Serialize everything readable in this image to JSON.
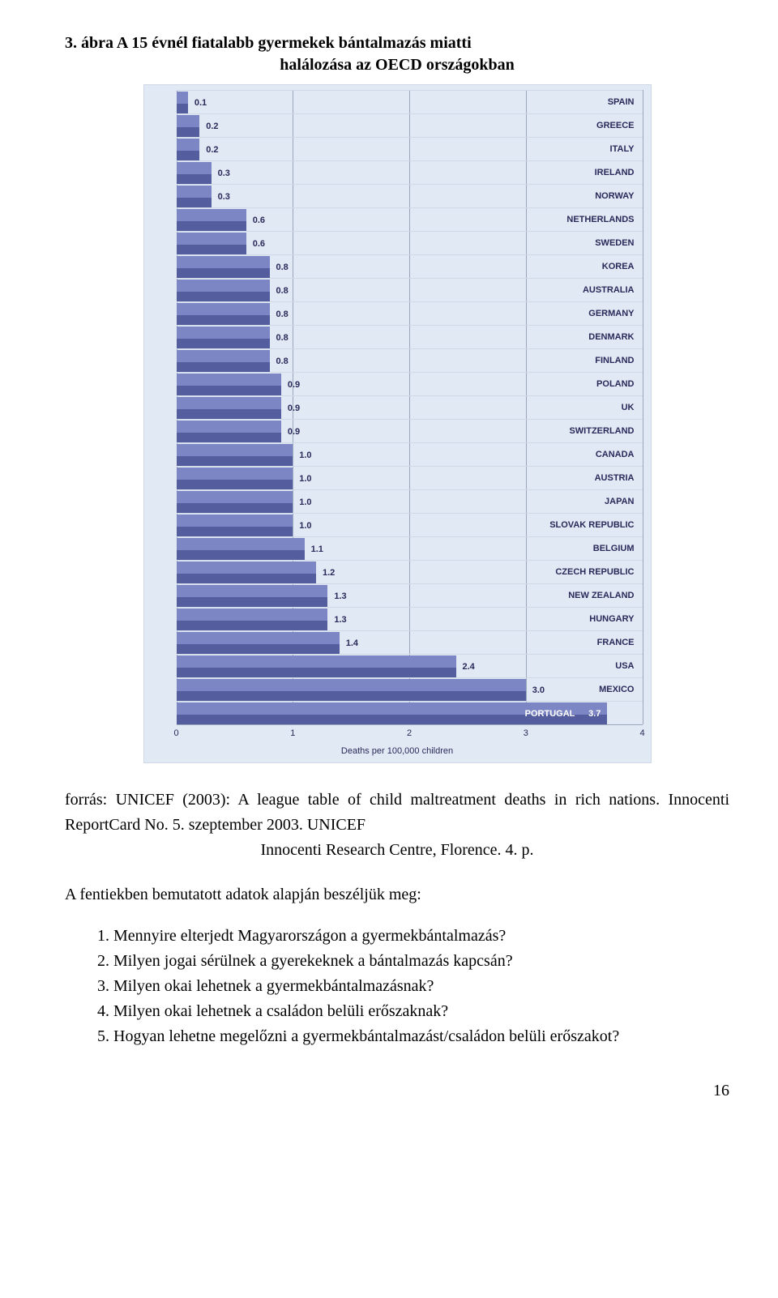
{
  "figure_title_line1": "3. ábra A 15 évnél fiatalabb gyermekek bántalmazás miatti",
  "figure_title_line2": "halálozása az OECD országokban",
  "chart": {
    "type": "bar-horizontal",
    "background_color": "#e1e9f4",
    "bar_color_top": "#7d86c4",
    "bar_color_bottom": "#545e9e",
    "text_color": "#2a2a5a",
    "grid_color": "#9aa6bd",
    "xmax": 4,
    "x_ticks": [
      0,
      1,
      2,
      3,
      4
    ],
    "x_axis_label": "Deaths per 100,000 children",
    "rows": [
      {
        "value": 0.1,
        "country": "SPAIN",
        "label_inside": false
      },
      {
        "value": 0.2,
        "country": "GREECE",
        "label_inside": false
      },
      {
        "value": 0.2,
        "country": "ITALY",
        "label_inside": false
      },
      {
        "value": 0.3,
        "country": "IRELAND",
        "label_inside": false
      },
      {
        "value": 0.3,
        "country": "NORWAY",
        "label_inside": false
      },
      {
        "value": 0.6,
        "country": "NETHERLANDS",
        "label_inside": false
      },
      {
        "value": 0.6,
        "country": "SWEDEN",
        "label_inside": false
      },
      {
        "value": 0.8,
        "country": "KOREA",
        "label_inside": false
      },
      {
        "value": 0.8,
        "country": "AUSTRALIA",
        "label_inside": false
      },
      {
        "value": 0.8,
        "country": "GERMANY",
        "label_inside": false
      },
      {
        "value": 0.8,
        "country": "DENMARK",
        "label_inside": false
      },
      {
        "value": 0.8,
        "country": "FINLAND",
        "label_inside": false
      },
      {
        "value": 0.9,
        "country": "POLAND",
        "label_inside": false
      },
      {
        "value": 0.9,
        "country": "UK",
        "label_inside": false
      },
      {
        "value": 0.9,
        "country": "SWITZERLAND",
        "label_inside": false
      },
      {
        "value": 1.0,
        "country": "CANADA",
        "label_inside": false
      },
      {
        "value": 1.0,
        "country": "AUSTRIA",
        "label_inside": false
      },
      {
        "value": 1.0,
        "country": "JAPAN",
        "label_inside": false
      },
      {
        "value": 1.0,
        "country": "SLOVAK REPUBLIC",
        "label_inside": false
      },
      {
        "value": 1.1,
        "country": "BELGIUM",
        "label_inside": false
      },
      {
        "value": 1.2,
        "country": "CZECH REPUBLIC",
        "label_inside": false
      },
      {
        "value": 1.3,
        "country": "NEW ZEALAND",
        "label_inside": false
      },
      {
        "value": 1.3,
        "country": "HUNGARY",
        "label_inside": false
      },
      {
        "value": 1.4,
        "country": "FRANCE",
        "label_inside": false
      },
      {
        "value": 2.4,
        "country": "USA",
        "label_inside": false
      },
      {
        "value": 3.0,
        "country": "MEXICO",
        "label_inside": false
      },
      {
        "value": 3.7,
        "country": "PORTUGAL",
        "label_inside": true
      }
    ]
  },
  "source_line1": "forrás: UNICEF (2003): A league table of child maltreatment deaths in",
  "source_line2": "rich nations. Innocenti ReportCard No. 5. szeptember 2003. UNICEF",
  "source_line3": "Innocenti Research Centre, Florence. 4. p.",
  "question_lead": "A fentiekben bemutatott adatok alapján beszéljük meg:",
  "questions": [
    "1. Mennyire elterjedt Magyarországon a gyermekbántalmazás?",
    "2. Milyen jogai sérülnek a gyerekeknek a bántalmazás kapcsán?",
    "3. Milyen okai lehetnek a gyermekbántalmazásnak?",
    "4. Milyen okai lehetnek a családon belüli erőszaknak?",
    "5. Hogyan lehetne megelőzni a gyermekbántalmazást/családon belüli erőszakot?"
  ],
  "page_number": "16"
}
